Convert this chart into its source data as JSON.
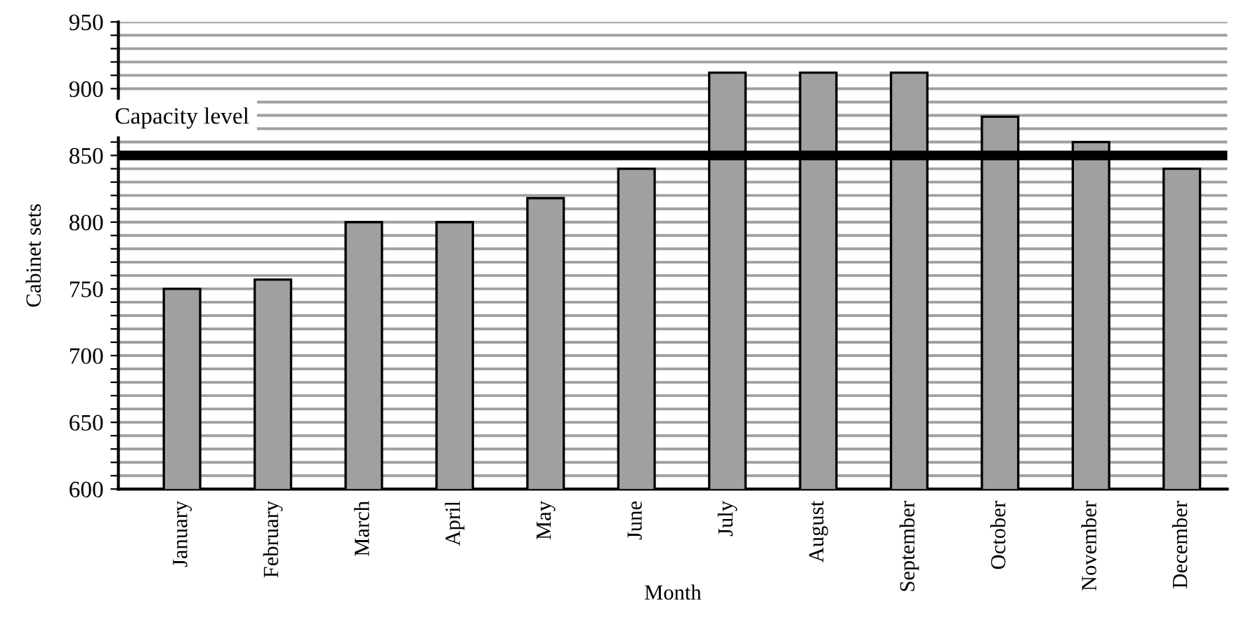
{
  "chart_data": {
    "type": "bar",
    "xlabel": "Month",
    "ylabel": "Cabinet sets",
    "categories": [
      "January",
      "February",
      "March",
      "April",
      "May",
      "June",
      "July",
      "August",
      "September",
      "October",
      "November",
      "December"
    ],
    "values": [
      750,
      757,
      800,
      800,
      818,
      840,
      912,
      912,
      912,
      879,
      860,
      840
    ],
    "color": "#a0a0a0",
    "ylim": [
      600,
      950
    ],
    "yticks": [
      600,
      {
        "value": 610,
        "label": null
      },
      {
        "value": 620,
        "label": null
      },
      {
        "value": 630,
        "label": null
      },
      {
        "value": 640,
        "label": null
      },
      650,
      {
        "value": 660,
        "label": null
      },
      {
        "value": 670,
        "label": null
      },
      {
        "value": 680,
        "label": null
      },
      {
        "value": 690,
        "label": null
      },
      700,
      {
        "value": 710,
        "label": null
      },
      {
        "value": 720,
        "label": null
      },
      {
        "value": 730,
        "label": null
      },
      {
        "value": 740,
        "label": null
      },
      750,
      {
        "value": 760,
        "label": null
      },
      {
        "value": 770,
        "label": null
      },
      {
        "value": 780,
        "label": null
      },
      {
        "value": 790,
        "label": null
      },
      800,
      {
        "value": 810,
        "label": null
      },
      {
        "value": 820,
        "label": null
      },
      {
        "value": 830,
        "label": null
      },
      {
        "value": 840,
        "label": null
      },
      850,
      {
        "value": 860,
        "label": null
      },
      {
        "value": 870,
        "label": null
      },
      {
        "value": 880,
        "label": null
      },
      {
        "value": 890,
        "label": null
      },
      900,
      {
        "value": 910,
        "label": null
      },
      {
        "value": 920,
        "label": null
      },
      {
        "value": 930,
        "label": null
      },
      {
        "value": 940,
        "label": null
      },
      950
    ],
    "grid": "y",
    "ref_lines": [
      {
        "axis": "y",
        "value": 850,
        "label": "Capacity level",
        "color": "#000000"
      }
    ]
  }
}
